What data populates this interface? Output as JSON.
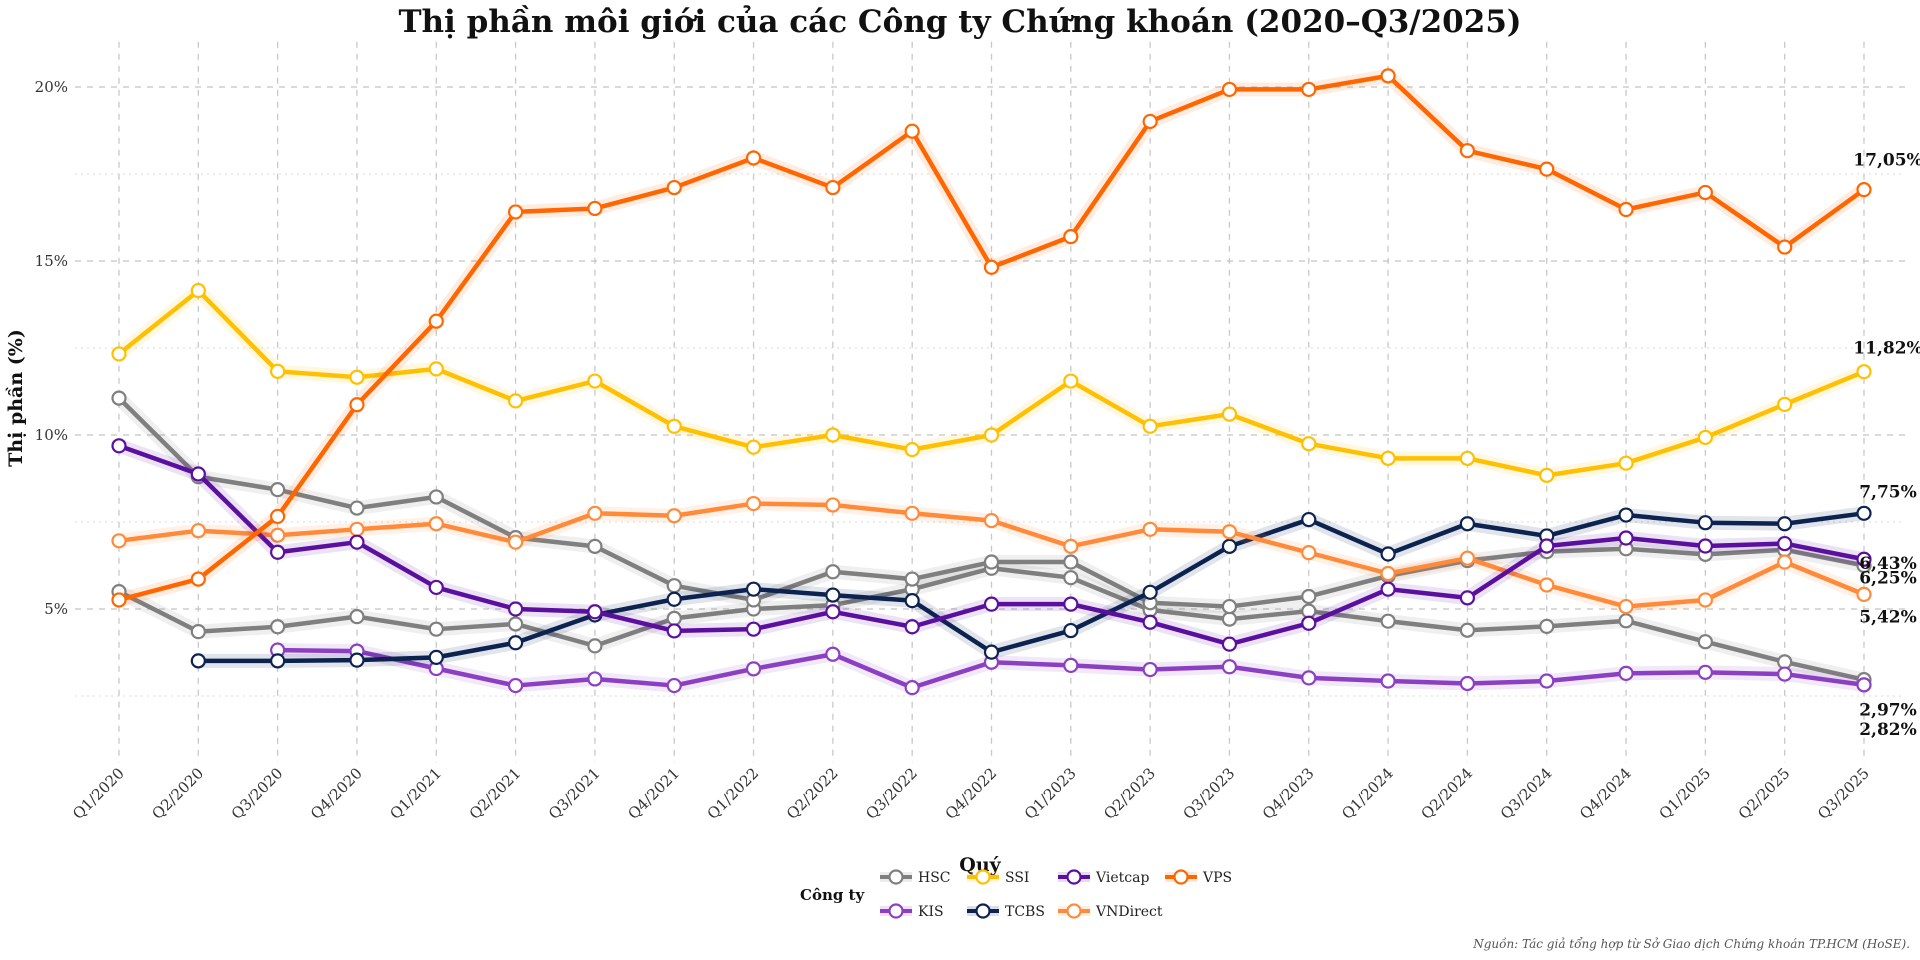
{
  "chart_data": {
    "type": "line",
    "title": "Thị phần môi giới của các Công ty Chứng khoán (2020–Q3/2025)",
    "xlabel": "Quý",
    "ylabel": "Thị phần (%)",
    "ylim": [
      0.6,
      21.3
    ],
    "yticks": [
      5,
      10,
      15,
      20
    ],
    "ytick_labels": [
      "5%",
      "10%",
      "15%",
      "20%"
    ],
    "grid": true,
    "legend_title": "Công ty",
    "legend_position": "bottom",
    "legend": [
      {
        "name": "HSC",
        "color": "#7f7f7f"
      },
      {
        "name": "SSI",
        "color": "#ffc000"
      },
      {
        "name": "Vietcap",
        "color": "#5b0f9e"
      },
      {
        "name": "VPS",
        "color": "#ff6600"
      },
      {
        "name": "KIS",
        "color": "#8b3fc2"
      },
      {
        "name": "TCBS",
        "color": "#0c2350"
      },
      {
        "name": "VNDirect",
        "color": "#ff8a3a"
      }
    ],
    "categories": [
      "Q1/2020",
      "Q2/2020",
      "Q3/2020",
      "Q4/2020",
      "Q1/2021",
      "Q2/2021",
      "Q3/2021",
      "Q4/2021",
      "Q1/2022",
      "Q2/2022",
      "Q3/2022",
      "Q4/2022",
      "Q1/2023",
      "Q2/2023",
      "Q3/2023",
      "Q4/2023",
      "Q1/2024",
      "Q2/2024",
      "Q3/2024",
      "Q4/2024",
      "Q1/2025",
      "Q2/2025",
      "Q3/2025"
    ],
    "series": [
      {
        "name": "",
        "color": "#7f7f7f",
        "values": [
          5.5,
          4.35,
          4.49,
          4.78,
          4.42,
          4.57,
          3.94,
          4.73,
          5.0,
          5.11,
          5.57,
          6.17,
          5.9,
          4.97,
          4.71,
          4.94,
          4.65,
          4.39,
          4.5,
          4.66,
          4.06,
          3.48,
          2.97
        ],
        "end_label": "2,97%"
      },
      {
        "name": "HSC",
        "color": "#7f7f7f",
        "values": [
          11.06,
          8.8,
          8.43,
          7.9,
          8.22,
          7.05,
          6.8,
          5.67,
          5.26,
          6.07,
          5.86,
          6.35,
          6.35,
          5.18,
          5.07,
          5.36,
          5.95,
          6.39,
          6.65,
          6.73,
          6.57,
          6.7,
          6.25
        ],
        "end_label": "6,25%"
      },
      {
        "name": "KIS",
        "color": "#8b3fc2",
        "values": [
          null,
          null,
          3.82,
          3.79,
          3.29,
          2.8,
          2.99,
          2.8,
          3.28,
          3.7,
          2.74,
          3.47,
          3.38,
          3.26,
          3.34,
          3.02,
          2.93,
          2.86,
          2.93,
          3.15,
          3.18,
          3.13,
          2.82
        ],
        "end_label": "2,82%"
      },
      {
        "name": "TCBS",
        "color": "#0c2350",
        "values": [
          null,
          3.51,
          3.51,
          3.53,
          3.61,
          4.03,
          4.83,
          5.28,
          5.57,
          5.4,
          5.24,
          3.76,
          4.38,
          5.48,
          6.8,
          7.57,
          6.58,
          7.45,
          7.1,
          7.7,
          7.48,
          7.45,
          7.75
        ],
        "end_label": "7,75%"
      },
      {
        "name": "VNDirect",
        "color": "#ff8a3a",
        "values": [
          6.96,
          7.25,
          7.12,
          7.29,
          7.45,
          6.92,
          7.75,
          7.68,
          8.03,
          7.99,
          7.75,
          7.54,
          6.8,
          7.29,
          7.22,
          6.62,
          6.02,
          6.46,
          5.69,
          5.07,
          5.26,
          6.35,
          5.42
        ],
        "end_label": "5,42%"
      },
      {
        "name": "Vietcap",
        "color": "#5b0f9e",
        "values": [
          9.69,
          8.88,
          6.63,
          6.92,
          5.62,
          5.0,
          4.92,
          4.37,
          4.42,
          4.92,
          4.49,
          5.14,
          5.14,
          4.62,
          3.99,
          4.59,
          5.57,
          5.32,
          6.81,
          7.04,
          6.81,
          6.88,
          6.43
        ],
        "end_label": "6,43%"
      },
      {
        "name": "SSI",
        "color": "#ffc000",
        "values": [
          12.33,
          14.15,
          11.83,
          11.66,
          11.9,
          10.98,
          11.55,
          10.25,
          9.65,
          10.0,
          9.58,
          10.0,
          11.55,
          10.25,
          10.6,
          9.75,
          9.33,
          9.33,
          8.84,
          9.19,
          9.93,
          10.88,
          11.82
        ],
        "end_label": "11,82%"
      },
      {
        "name": "VPS",
        "color": "#ff6600",
        "values": [
          5.26,
          5.86,
          7.66,
          10.87,
          13.27,
          16.41,
          16.51,
          17.11,
          17.96,
          17.11,
          18.73,
          14.82,
          15.7,
          19.01,
          19.93,
          19.93,
          20.32,
          18.17,
          17.64,
          16.48,
          16.97,
          15.4,
          17.05
        ],
        "end_label": "17,05%"
      }
    ],
    "source_note": "Nguồn: Tác giả tổng hợp từ Sở Giao dịch Chứng khoán TP.HCM (HoSE)."
  }
}
